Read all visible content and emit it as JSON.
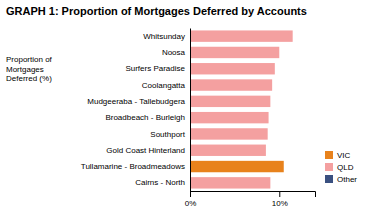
{
  "chart_data": {
    "type": "bar",
    "orientation": "horizontal",
    "title": "GRAPH 1: Proportion of Mortgages Deferred by Accounts",
    "ylabel": "Proportion of\nMortgages\nDeferred (%)",
    "categories": [
      "Cairns - North",
      "Tullamarine - Broadmeadows",
      "Gold Coast Hinterland",
      "Southport",
      "Broadbeach - Burleigh",
      "Mudgeeraba - Tallebudgera",
      "Coolangatta",
      "Surfers Paradise",
      "Noosa",
      "Whitsunday"
    ],
    "series": [
      {
        "name": "VIC",
        "color": "#E8821C",
        "values": [
          null,
          10.5,
          null,
          null,
          null,
          null,
          null,
          null,
          null,
          null
        ]
      },
      {
        "name": "QLD",
        "color": "#F4A0A0",
        "values": [
          9.0,
          null,
          8.5,
          8.7,
          8.8,
          9.0,
          9.2,
          9.5,
          10.0,
          11.5
        ]
      },
      {
        "name": "Other",
        "color": "#3A5080",
        "values": [
          null,
          null,
          null,
          null,
          null,
          null,
          null,
          null,
          null,
          null
        ]
      }
    ],
    "xlim": [
      0,
      14
    ],
    "xticks": [
      {
        "value": 0,
        "label": "0%"
      },
      {
        "value": 10,
        "label": "10%"
      }
    ],
    "legend": "lower right"
  }
}
